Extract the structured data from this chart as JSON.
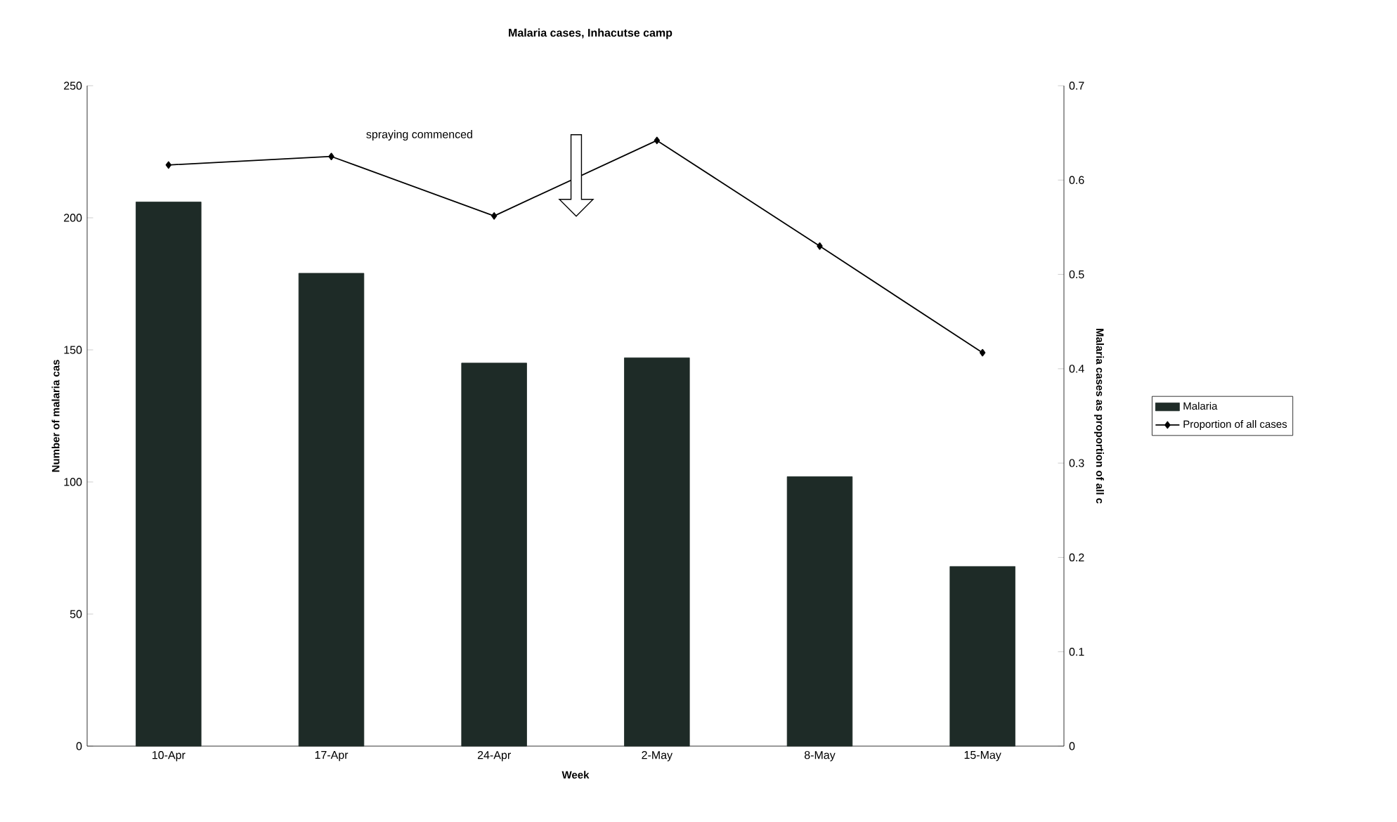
{
  "chart_data": {
    "type": "bar",
    "title": "Malaria cases, Inhacutse camp",
    "xlabel": "Week",
    "ylabel": "Number of malaria cas",
    "y2label": "Malaria cases as proportion of all c",
    "categories": [
      "10-Apr",
      "17-Apr",
      "24-Apr",
      "2-May",
      "8-May",
      "15-May"
    ],
    "series": [
      {
        "name": "Malaria",
        "color": "#1e2b27",
        "values": [
          206,
          179,
          145,
          147,
          102,
          68
        ]
      },
      {
        "name": "Proportion of all cases",
        "type": "line",
        "axis": "y2",
        "color": "#000000",
        "values": [
          0.616,
          0.625,
          0.562,
          0.642,
          0.53,
          0.417
        ]
      }
    ],
    "ylim": [
      0,
      250
    ],
    "yticks": [
      0,
      50,
      100,
      150,
      200,
      250
    ],
    "y2lim": [
      0,
      0.7
    ],
    "y2ticks": [
      0,
      0.1,
      0.2,
      0.3,
      0.4,
      0.5,
      0.6,
      0.7
    ],
    "marker": "diamond",
    "legend": "right",
    "annotations": [
      "spraying commenced"
    ]
  }
}
